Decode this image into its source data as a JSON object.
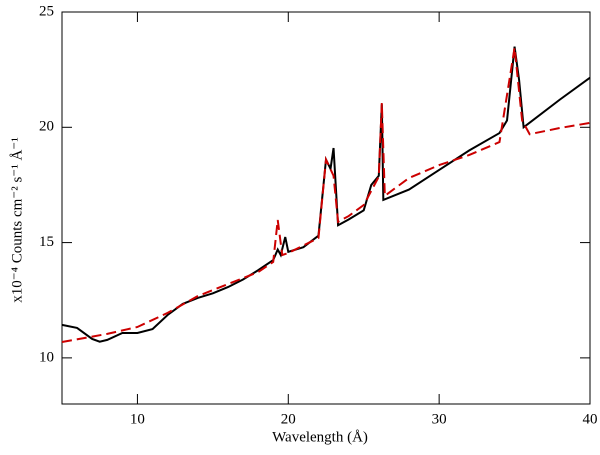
{
  "chart_data": {
    "type": "line",
    "xlabel": "Wavelength (Å)",
    "ylabel": "x10⁻⁴ Counts cm⁻² s⁻¹ Å⁻¹",
    "xlim": [
      5,
      40
    ],
    "ylim": [
      8,
      25
    ],
    "xticks": [
      10,
      20,
      30,
      40
    ],
    "yticks": [
      10,
      15,
      20,
      25
    ],
    "series": [
      {
        "color": "#000000",
        "dash": false,
        "x": [
          5,
          6,
          7,
          7.5,
          8,
          9,
          10,
          11,
          12,
          13,
          14,
          15,
          16,
          17,
          18,
          19,
          19.3,
          19.5,
          19.8,
          20,
          21,
          22,
          22.5,
          22.8,
          23,
          23.3,
          24,
          25,
          25.5,
          26,
          26.2,
          26.3,
          28,
          30,
          32,
          34,
          34.5,
          35,
          35.3,
          35.6,
          36,
          38,
          40
        ],
        "values": [
          11.43,
          11.3,
          10.82,
          10.7,
          10.78,
          11.08,
          11.08,
          11.25,
          11.86,
          12.34,
          12.6,
          12.8,
          13.07,
          13.4,
          13.8,
          14.24,
          14.7,
          14.46,
          15.24,
          14.6,
          14.8,
          15.3,
          18.6,
          18.2,
          19.1,
          15.75,
          16.0,
          16.4,
          17.5,
          17.9,
          21.0,
          16.85,
          17.3,
          18.15,
          19.0,
          19.75,
          20.3,
          23.5,
          22.05,
          20.0,
          20.2,
          21.2,
          22.15
        ]
      },
      {
        "color": "#cc0000",
        "dash": true,
        "x": [
          5,
          8,
          10,
          12,
          14,
          16,
          18,
          19,
          19.3,
          19.6,
          20,
          22,
          22.5,
          23,
          23.3,
          24,
          25,
          26,
          26.2,
          26.4,
          28,
          30,
          32,
          34,
          35,
          35.5,
          36,
          38,
          40
        ],
        "values": [
          10.69,
          11.04,
          11.34,
          11.95,
          12.68,
          13.2,
          13.72,
          14.16,
          15.98,
          14.46,
          14.55,
          15.2,
          18.6,
          17.9,
          15.9,
          16.15,
          16.63,
          17.86,
          21.05,
          17.03,
          17.8,
          18.36,
          18.8,
          19.36,
          23.45,
          20.3,
          19.7,
          19.97,
          20.19
        ]
      }
    ]
  }
}
